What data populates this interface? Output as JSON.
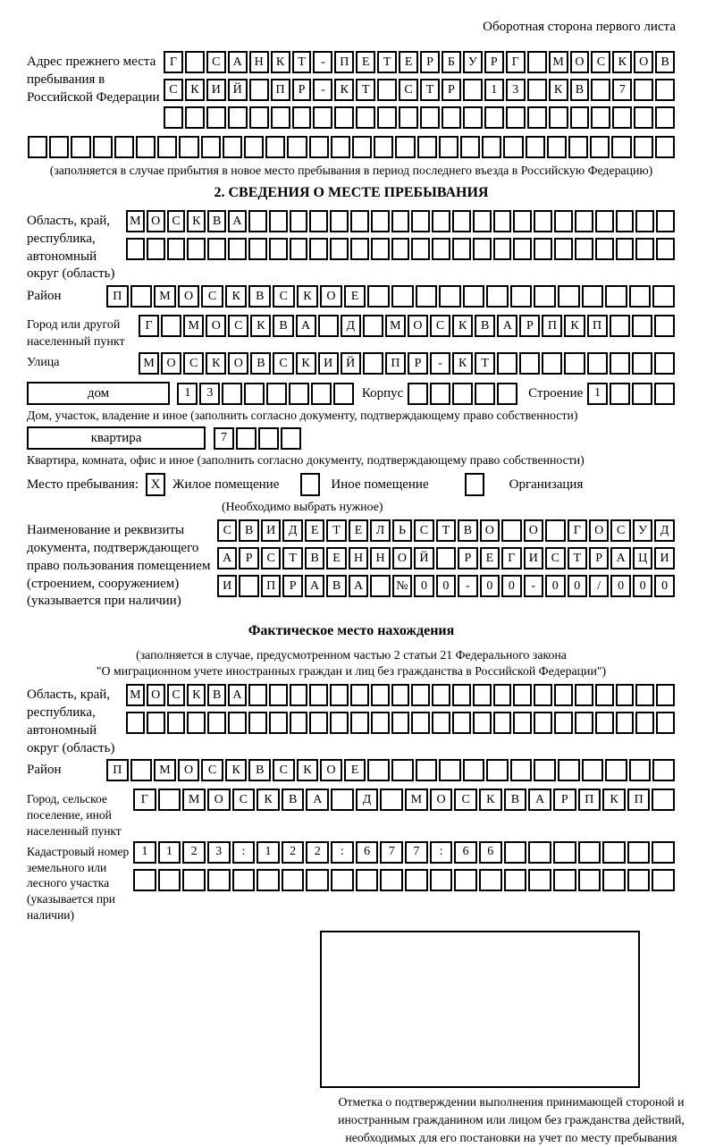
{
  "page": {
    "header_note": "Оборотная сторона первого листа"
  },
  "prev_address": {
    "label": "Адрес прежнего места пребывания в Российской Федерации",
    "line1": {
      "n": 24,
      "chars": "Г САНКТ-ПЕТЕРБУРГ МОСКОВ"
    },
    "line2": {
      "n": 24,
      "chars": "СКИЙ ПР-КТ СТР 13 КВ 7"
    },
    "line3": {
      "n": 24,
      "chars": ""
    },
    "line4": {
      "n": 30,
      "chars": ""
    },
    "note": "(заполняется в случае прибытия в новое место пребывания в период последнего въезда в Российскую Федерацию)"
  },
  "section2": {
    "title": "2. СВЕДЕНИЯ О МЕСТЕ ПРЕБЫВАНИЯ",
    "region": {
      "label": "Область, край, республика, автономный округ (область)",
      "line1": {
        "n": 27,
        "chars": "МОСКВА"
      },
      "line2": {
        "n": 27,
        "chars": ""
      }
    },
    "district": {
      "label": "Район",
      "line1": {
        "n": 24,
        "chars": "П МОСКВСКОЕ"
      }
    },
    "city": {
      "label": "Город или другой населенный пункт",
      "line1": {
        "n": 24,
        "chars": "Г МОСКВА Д МОСКВАРПКП"
      }
    },
    "street": {
      "label": "Улица",
      "line1": {
        "n": 24,
        "chars": "МОСКОВСКИЙ ПР-КТ"
      }
    },
    "house": {
      "box_label": "дом",
      "digits": {
        "n": 8,
        "chars": "13"
      },
      "korpus_label": "Корпус",
      "korpus": {
        "n": 5,
        "chars": ""
      },
      "stroenie_label": "Строение",
      "stroenie": {
        "n": 4,
        "chars": "1"
      },
      "caption": "Дом, участок, владение и иное (заполнить согласно документу, подтверждающему право собственности)"
    },
    "apartment": {
      "box_label": "квартира",
      "digits": {
        "n": 4,
        "chars": "7"
      },
      "caption": "Квартира, комната, офис и иное (заполнить согласно документу, подтверждающему право собственности)"
    },
    "stay_type": {
      "label": "Место пребывания:",
      "options": [
        {
          "label": "Жилое помещение",
          "checked": "X"
        },
        {
          "label": "Иное помещение",
          "checked": ""
        },
        {
          "label": "Организация",
          "checked": ""
        }
      ],
      "note": "(Необходимо выбрать нужное)"
    },
    "document": {
      "label": "Наименование и реквизиты документа, подтверждающего право пользования помещением (строением, сооружением) (указывается при наличии)",
      "line1": {
        "n": 21,
        "chars": "СВИДЕТЕЛЬСТВО О ГОСУД"
      },
      "line2": {
        "n": 21,
        "chars": "АРСТВЕННОЙ РЕГИСТРАЦИ"
      },
      "line3": {
        "n": 21,
        "chars": "И ПРАВА №00-00-00/000"
      }
    }
  },
  "actual_location": {
    "title": "Фактическое место нахождения",
    "note1": "(заполняется в случае, предусмотренном частью 2 статьи 21 Федерального закона",
    "note2": "\"О миграционном учете иностранных граждан и лиц без гражданства в Российской Федерации\")",
    "region": {
      "label": "Область, край, республика, автономный округ (область)",
      "line1": {
        "n": 27,
        "chars": "МОСКВА"
      },
      "line2": {
        "n": 27,
        "chars": ""
      }
    },
    "district": {
      "label": "Район",
      "line1": {
        "n": 24,
        "chars": "П МОСКВСКОЕ"
      }
    },
    "city": {
      "label": "Город, сельское поселение, иной населенный пункт",
      "line1": {
        "n": 22,
        "chars": "Г МОСКВА Д МОСКВАРПКП"
      }
    },
    "cadastral": {
      "label": "Кадастровый номер земельного или лесного участка (указывается при наличии)",
      "line1": {
        "n": 22,
        "chars": "1123:122:677:66"
      },
      "line2": {
        "n": 22,
        "chars": ""
      }
    }
  },
  "stamp_area": {
    "caption": "Отметка о подтверждении выполнения принимающей стороной и иностранным гражданином или лицом без гражданства действий, необходимых для его постановки на учет по месту пребывания"
  }
}
